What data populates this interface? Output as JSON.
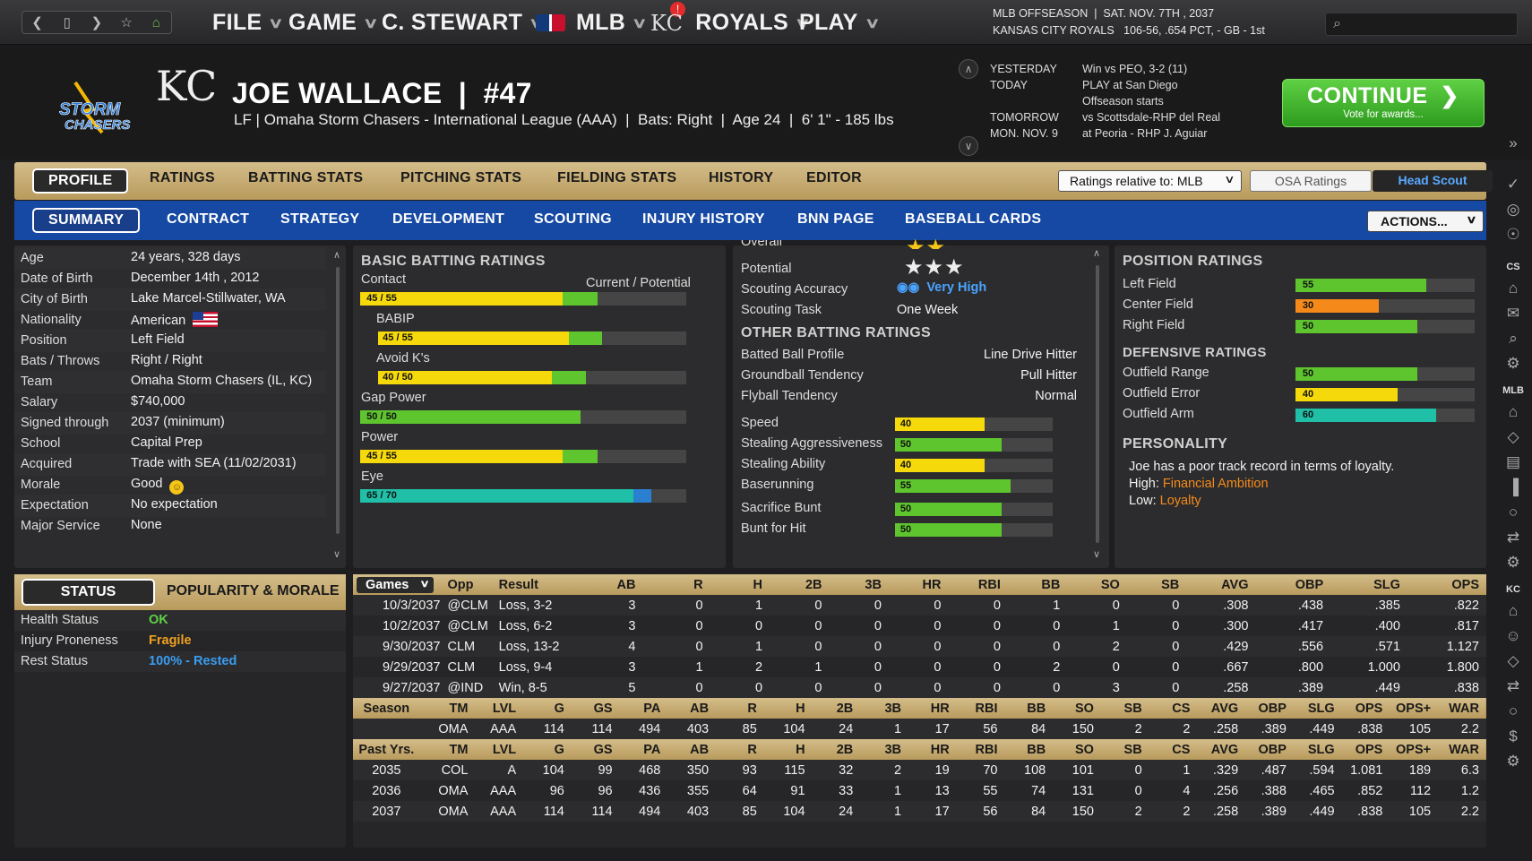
{
  "topbar": {
    "nav_icons": [
      "back-icon",
      "forward-square-icon",
      "forward-icon",
      "star-icon",
      "home-icon"
    ],
    "menus": [
      {
        "label": "FILE"
      },
      {
        "label": "GAME"
      },
      {
        "label": "C. STEWART"
      },
      {
        "label": "MLB",
        "badge": "!"
      },
      {
        "label": "ROYALS",
        "logo": "KC"
      },
      {
        "label": "PLAY"
      }
    ],
    "season_line1": "MLB OFFSEASON  |  SAT. NOV. 7TH , 2037",
    "season_line2": "KANSAS CITY ROYALS   106-56, .654 PCT, - GB - 1st",
    "search_placeholder": ""
  },
  "header": {
    "team_logo_text": "STORM CHASERS",
    "org_logo_text": "KC",
    "player_name": "JOE WALLACE  |  #47",
    "player_sub": "LF | Omaha Storm Chasers - International League (AAA)  |  Bats: Right  |  Age 24  |  6' 1\" - 185 lbs",
    "schedule": {
      "yesterday_label": "YESTERDAY",
      "yesterday_value": "Win vs PEO, 3-2 (11)",
      "today_label": "TODAY",
      "today_value1": "PLAY at San Diego",
      "today_value2": "Offseason starts",
      "tomorrow_label": "TOMORROW",
      "tomorrow_value": "vs Scottsdale-RHP del Real",
      "next_label": "MON. NOV. 9",
      "next_value": "at Peoria - RHP J. Aguiar"
    },
    "continue_label": "CONTINUE",
    "continue_sub": "Vote for awards..."
  },
  "tabs1": {
    "items": [
      "PROFILE",
      "RATINGS",
      "BATTING STATS",
      "PITCHING STATS",
      "FIELDING STATS",
      "HISTORY",
      "EDITOR"
    ],
    "relative_select": "Ratings relative to: MLB",
    "osa_button": "OSA Ratings",
    "scout_button": "Head Scout"
  },
  "tabs2": {
    "items": [
      "SUMMARY",
      "CONTRACT",
      "STRATEGY",
      "DEVELOPMENT",
      "SCOUTING",
      "INJURY HISTORY",
      "BNN PAGE",
      "BASEBALL CARDS"
    ],
    "actions": "ACTIONS..."
  },
  "bio": [
    {
      "label": "Age",
      "value": "24 years, 328 days"
    },
    {
      "label": "Date of Birth",
      "value": "December 14th , 2012"
    },
    {
      "label": "City of Birth",
      "value": "Lake Marcel-Stillwater, WA"
    },
    {
      "label": "Nationality",
      "value": "American"
    },
    {
      "label": "Position",
      "value": "Left Field"
    },
    {
      "label": "Bats / Throws",
      "value": "Right / Right"
    },
    {
      "label": "Team",
      "value": "Omaha Storm Chasers (IL, KC)"
    },
    {
      "label": "Salary",
      "value": "$740,000"
    },
    {
      "label": "Signed through",
      "value": "2037 (minimum)"
    },
    {
      "label": "School",
      "value": "Capital Prep"
    },
    {
      "label": "Acquired",
      "value": "Trade with SEA (11/02/2031)"
    },
    {
      "label": "Morale",
      "value": "Good"
    },
    {
      "label": "Expectation",
      "value": "No expectation"
    },
    {
      "label": "Major Service",
      "value": "None"
    }
  ],
  "status": {
    "tab_active": "STATUS",
    "tab_other": "POPULARITY & MORALE",
    "rows": [
      {
        "label": "Health Status",
        "value": "OK",
        "color": "#5fd044"
      },
      {
        "label": "Injury Proneness",
        "value": "Fragile",
        "color": "#f0a020"
      },
      {
        "label": "Rest Status",
        "value": "100% - Rested",
        "color": "#3a9df0"
      }
    ]
  },
  "basic_batting": {
    "title": "BASIC BATTING RATINGS",
    "col_label": "Current / Potential",
    "rows": [
      {
        "label": "Contact",
        "text": "45 / 55",
        "cur": 45,
        "pot": 55,
        "color": "#f5d90a",
        "indent": false
      },
      {
        "label": "BABIP",
        "text": "45 / 55",
        "cur": 45,
        "pot": 55,
        "color": "#f5d90a",
        "indent": true
      },
      {
        "label": "Avoid K's",
        "text": "40 / 50",
        "cur": 40,
        "pot": 50,
        "color": "#f5d90a",
        "indent": true
      },
      {
        "label": "Gap Power",
        "text": "50 / 50",
        "cur": 50,
        "pot": 50,
        "color": "#5fc52f",
        "indent": false
      },
      {
        "label": "Power",
        "text": "45 / 55",
        "cur": 45,
        "pot": 55,
        "color": "#f5d90a",
        "indent": false
      },
      {
        "label": "Eye",
        "text": "65 / 70",
        "cur": 65,
        "pot": 70,
        "color": "#1fbfa8",
        "indent": false
      }
    ]
  },
  "mid": {
    "overall_label": "Overall",
    "overall_stars": 2,
    "potential_label": "Potential",
    "potential_stars": 3,
    "accuracy_label": "Scouting Accuracy",
    "accuracy_value": "Very High",
    "task_label": "Scouting Task",
    "task_value": "One Week",
    "other_title": "OTHER BATTING RATINGS",
    "profile_rows": [
      {
        "label": "Batted Ball Profile",
        "value": "Line Drive Hitter"
      },
      {
        "label": "Groundball Tendency",
        "value": "Pull Hitter"
      },
      {
        "label": "Flyball Tendency",
        "value": "Normal"
      }
    ],
    "bar_rows": [
      {
        "label": "Speed",
        "value": 40,
        "color": "#f5d90a"
      },
      {
        "label": "Stealing Aggressiveness",
        "value": 50,
        "color": "#5fc52f"
      },
      {
        "label": "Stealing Ability",
        "value": 40,
        "color": "#f5d90a"
      },
      {
        "label": "Baserunning",
        "value": 55,
        "color": "#5fc52f"
      },
      {
        "label": "Sacrifice Bunt",
        "value": 50,
        "color": "#5fc52f"
      },
      {
        "label": "Bunt for Hit",
        "value": 50,
        "color": "#5fc52f"
      }
    ]
  },
  "position": {
    "title": "POSITION RATINGS",
    "rows": [
      {
        "label": "Left Field",
        "value": 55,
        "color": "#5fc52f"
      },
      {
        "label": "Center Field",
        "value": 30,
        "color": "#f58a1a"
      },
      {
        "label": "Right Field",
        "value": 50,
        "color": "#5fc52f"
      }
    ],
    "def_title": "DEFENSIVE RATINGS",
    "def_rows": [
      {
        "label": "Outfield Range",
        "value": 50,
        "color": "#5fc52f"
      },
      {
        "label": "Outfield Error",
        "value": 40,
        "color": "#f5d90a"
      },
      {
        "label": "Outfield Arm",
        "value": 60,
        "color": "#1fbfa8"
      }
    ],
    "personality_title": "PERSONALITY",
    "personality_text": "Joe has a poor track record in terms of loyalty.",
    "high_label": "High:",
    "high_value": "Financial Ambition",
    "low_label": "Low:",
    "low_value": "Loyalty"
  },
  "games": {
    "select": "Games",
    "headers": [
      "Opp",
      "Result",
      "AB",
      "R",
      "H",
      "2B",
      "3B",
      "HR",
      "RBI",
      "BB",
      "SO",
      "SB",
      "AVG",
      "OBP",
      "SLG",
      "OPS"
    ],
    "rows": [
      [
        "10/3/2037",
        "@CLM",
        "Loss, 3-2",
        "3",
        "0",
        "1",
        "0",
        "0",
        "0",
        "0",
        "1",
        "0",
        "0",
        ".308",
        ".438",
        ".385",
        ".822"
      ],
      [
        "10/2/2037",
        "@CLM",
        "Loss, 6-2",
        "3",
        "0",
        "0",
        "0",
        "0",
        "0",
        "0",
        "0",
        "1",
        "0",
        ".300",
        ".417",
        ".400",
        ".817"
      ],
      [
        "9/30/2037",
        "CLM",
        "Loss, 13-2",
        "4",
        "0",
        "1",
        "0",
        "0",
        "0",
        "0",
        "0",
        "2",
        "0",
        ".429",
        ".556",
        ".571",
        "1.127"
      ],
      [
        "9/29/2037",
        "CLM",
        "Loss, 9-4",
        "3",
        "1",
        "2",
        "1",
        "0",
        "0",
        "0",
        "2",
        "0",
        "0",
        ".667",
        ".800",
        "1.000",
        "1.800"
      ],
      [
        "9/27/2037",
        "@IND",
        "Win, 8-5",
        "5",
        "0",
        "0",
        "0",
        "0",
        "0",
        "0",
        "0",
        "3",
        "0",
        ".258",
        ".389",
        ".449",
        ".838"
      ]
    ]
  },
  "season": {
    "headers": [
      "Season",
      "TM",
      "LVL",
      "G",
      "GS",
      "PA",
      "AB",
      "R",
      "H",
      "2B",
      "3B",
      "HR",
      "RBI",
      "BB",
      "SO",
      "SB",
      "CS",
      "AVG",
      "OBP",
      "SLG",
      "OPS",
      "OPS+",
      "WAR"
    ],
    "row": [
      "",
      "OMA",
      "AAA",
      "114",
      "114",
      "494",
      "403",
      "85",
      "104",
      "24",
      "1",
      "17",
      "56",
      "84",
      "150",
      "2",
      "2",
      ".258",
      ".389",
      ".449",
      ".838",
      "105",
      "2.2"
    ]
  },
  "past": {
    "headers": [
      "Past Yrs.",
      "TM",
      "LVL",
      "G",
      "GS",
      "PA",
      "AB",
      "R",
      "H",
      "2B",
      "3B",
      "HR",
      "RBI",
      "BB",
      "SO",
      "SB",
      "CS",
      "AVG",
      "OBP",
      "SLG",
      "OPS",
      "OPS+",
      "WAR"
    ],
    "rows": [
      [
        "2035",
        "COL",
        "A",
        "104",
        "99",
        "468",
        "350",
        "93",
        "115",
        "32",
        "2",
        "19",
        "70",
        "108",
        "101",
        "0",
        "1",
        ".329",
        ".487",
        ".594",
        "1.081",
        "189",
        "6.3"
      ],
      [
        "2036",
        "OMA",
        "AAA",
        "96",
        "96",
        "436",
        "355",
        "64",
        "91",
        "33",
        "1",
        "13",
        "55",
        "74",
        "131",
        "0",
        "4",
        ".256",
        ".388",
        ".465",
        ".852",
        "112",
        "1.2"
      ],
      [
        "2037",
        "OMA",
        "AAA",
        "114",
        "114",
        "494",
        "403",
        "85",
        "104",
        "24",
        "1",
        "17",
        "56",
        "84",
        "150",
        "2",
        "2",
        ".258",
        ".389",
        ".449",
        ".838",
        "105",
        "2.2"
      ]
    ]
  },
  "sidebar": {
    "labels": [
      "CS",
      "MLB",
      "KC"
    ]
  }
}
